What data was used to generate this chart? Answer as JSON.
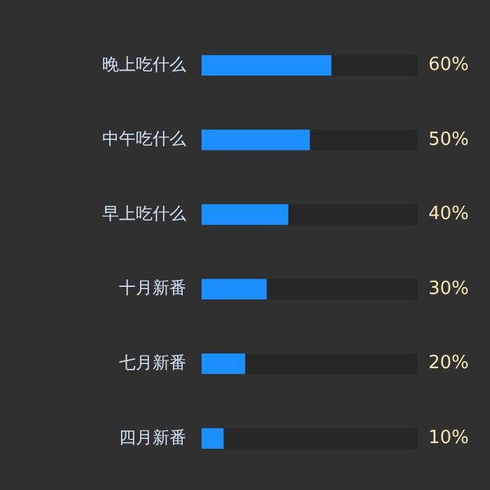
{
  "chart_data": {
    "type": "bar",
    "orientation": "horizontal",
    "categories": [
      "晚上吃什么",
      "中午吃什么",
      "早上吃什么",
      "十月新番",
      "七月新番",
      "四月新番"
    ],
    "series": [
      {
        "color": "#1a90ff",
        "values": [
          60,
          50,
          40,
          30,
          20,
          10
        ],
        "value_labels": [
          "60%",
          "50%",
          "40%",
          "30%",
          "20%",
          "10%"
        ]
      },
      {
        "color": "#262626",
        "values": [
          40,
          50,
          60,
          70,
          80,
          90
        ]
      }
    ],
    "stacked": true,
    "tick_labels": "y",
    "legend": false
  }
}
